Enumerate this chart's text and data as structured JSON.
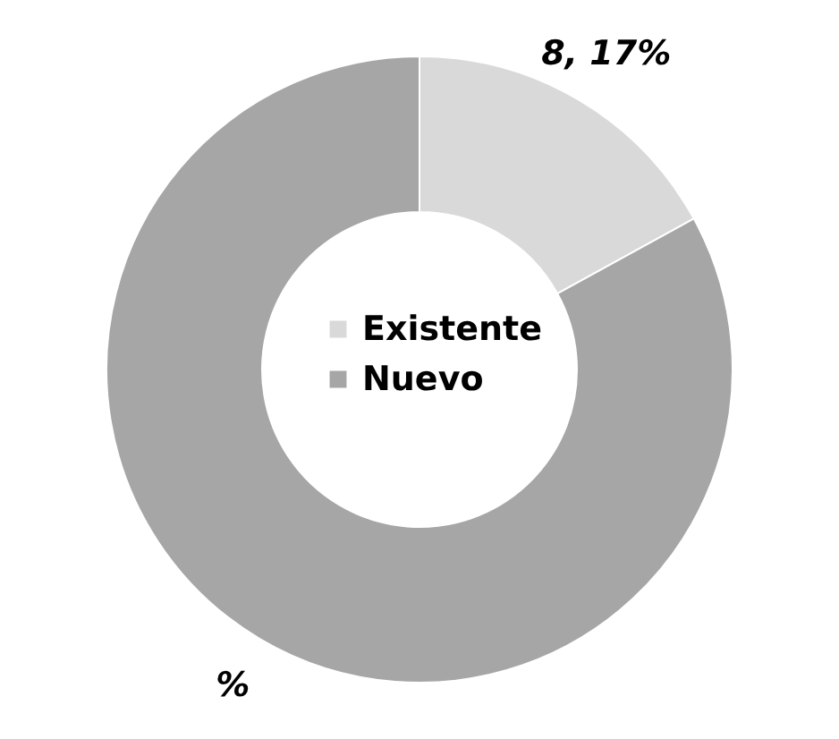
{
  "chart_data": {
    "type": "donut",
    "categories": [
      "Existente",
      "Nuevo"
    ],
    "values": [
      17,
      83
    ],
    "colors": [
      "#d9d9d9",
      "#a6a6a6"
    ],
    "value_labels": [
      "8, 17%",
      "%"
    ],
    "legend": "center"
  }
}
